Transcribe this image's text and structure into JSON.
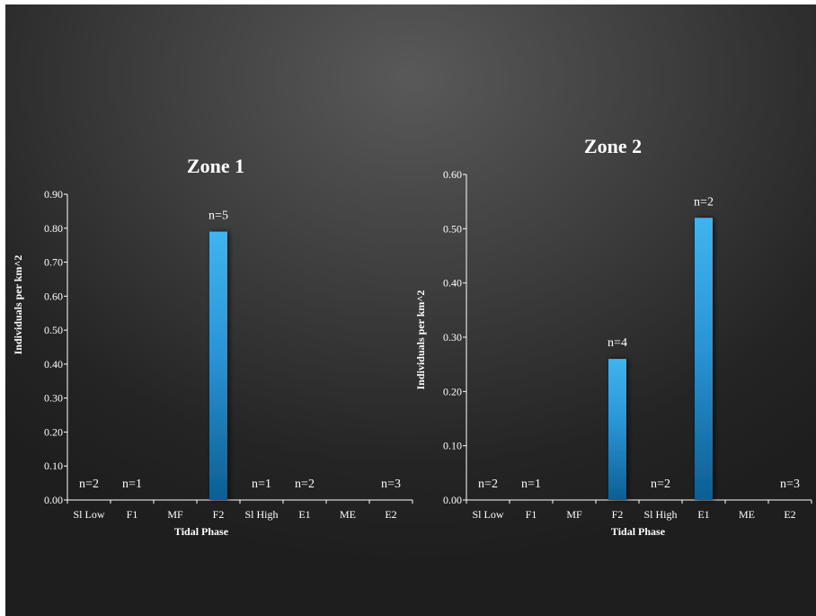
{
  "chart_data": [
    {
      "type": "bar",
      "title": "Zone 1",
      "xlabel": "Tidal Phase",
      "ylabel": "Individuals per km^2",
      "ylim": [
        0,
        0.9
      ],
      "ytick_step": 0.1,
      "grid": false,
      "categories": [
        "Sl Low",
        "F1",
        "MF",
        "F2",
        "Sl High",
        "E1",
        "ME",
        "E2"
      ],
      "values": [
        0,
        0,
        0,
        0.79,
        0,
        0,
        0,
        0
      ],
      "data_labels": [
        "n=2",
        "n=1",
        "",
        "n=5",
        "n=1",
        "n=2",
        "",
        "n=3"
      ]
    },
    {
      "type": "bar",
      "title": "Zone 2",
      "xlabel": "Tidal Phase",
      "ylabel": "Individuals per km^2",
      "ylim": [
        0,
        0.6
      ],
      "ytick_step": 0.1,
      "grid": false,
      "categories": [
        "Sl Low",
        "F1",
        "MF",
        "F2",
        "Sl High",
        "E1",
        "ME",
        "E2"
      ],
      "values": [
        0,
        0,
        0,
        0.26,
        0,
        0.52,
        0,
        0
      ],
      "data_labels": [
        "n=2",
        "n=1",
        "",
        "n=4",
        "n=2",
        "n=2",
        "",
        "n=3"
      ]
    }
  ],
  "colors": {
    "bar_top": "#3fb4ee",
    "bar_bottom": "#0d5e93",
    "axis": "#ffffff"
  }
}
